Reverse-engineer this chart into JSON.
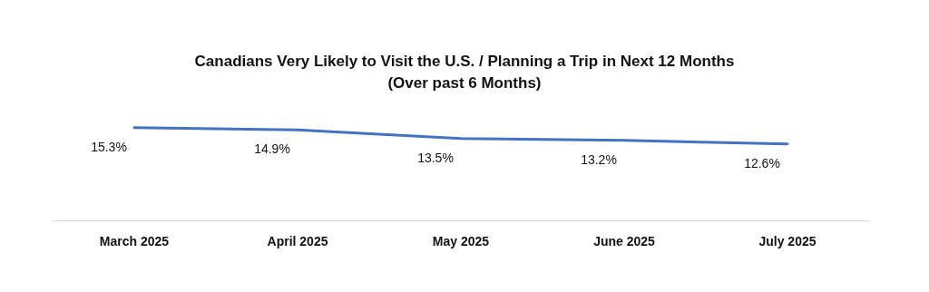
{
  "chart_data": {
    "type": "line",
    "title": "Canadians Very Likely to Visit the U.S. / Planning a Trip in Next 12 Months\n(Over past 6 Months)",
    "categories": [
      "March 2025",
      "April 2025",
      "May 2025",
      "June 2025",
      "July 2025"
    ],
    "series": [
      {
        "color": "#4472c4",
        "values": [
          15.3,
          14.9,
          13.5,
          13.2,
          12.6
        ],
        "value_labels": [
          "15.3%",
          "14.9%",
          "13.5%",
          "13.2%",
          "12.6%"
        ]
      }
    ],
    "grid": false,
    "marker": "none",
    "line_style": "solid"
  }
}
